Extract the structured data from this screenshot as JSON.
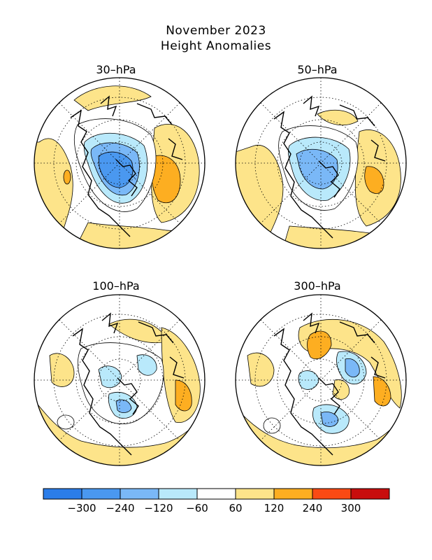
{
  "title": "November 2023",
  "subtitle": "Height Anomalies",
  "panels": [
    {
      "label": "30–hPa"
    },
    {
      "label": "50–hPa"
    },
    {
      "label": "100–hPa"
    },
    {
      "label": "300–hPa"
    }
  ],
  "colorbar": {
    "ticks": [
      "−300",
      "−240",
      "−120",
      "−60",
      "60",
      "120",
      "240",
      "300"
    ],
    "colors": [
      "#2b7de9",
      "#4a98f0",
      "#7ab8f7",
      "#b9e9fb",
      "#ffffff",
      "#fde48a",
      "#fdae21",
      "#fa4a14",
      "#c80d0d"
    ]
  },
  "colors": {
    "land_outline": "#000000",
    "grid": "#000000"
  }
}
